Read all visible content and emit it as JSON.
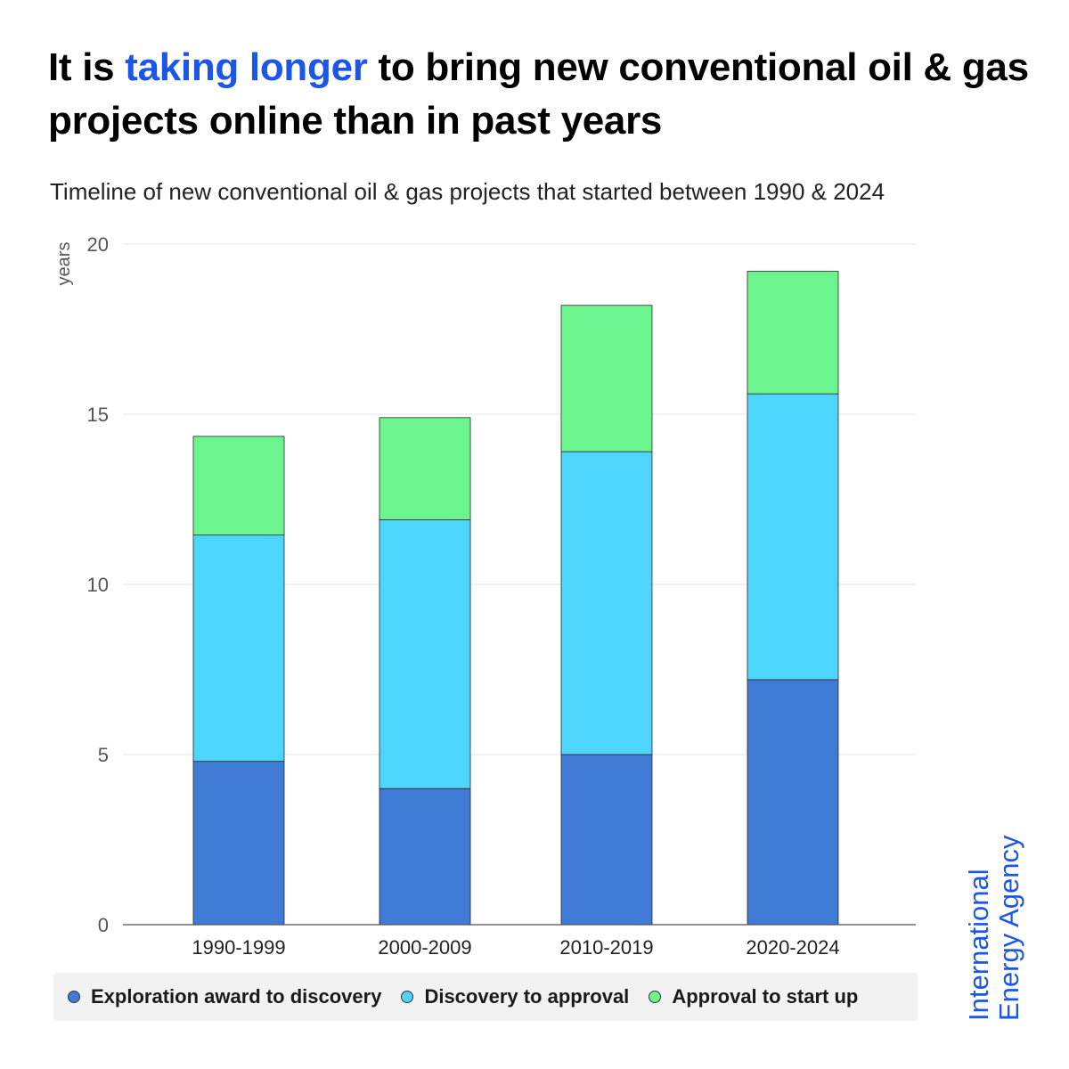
{
  "title": {
    "part1": "It is ",
    "highlight": "taking longer",
    "part2": " to bring new conventional oil & gas projects online than in past years"
  },
  "subtitle": "Timeline of new conventional oil & gas projects that started between 1990 & 2024",
  "brand": {
    "line1": "International",
    "line2": "Energy Agency",
    "color": "#1c56e8"
  },
  "chart_data": {
    "type": "bar",
    "stacked": true,
    "title": "Timeline of new conventional oil & gas projects that started between 1990 & 2024",
    "ylabel": "years",
    "xlabel": "",
    "ylim": [
      0,
      20
    ],
    "yticks": [
      0,
      5,
      10,
      15,
      20
    ],
    "grid": true,
    "legend_position": "bottom",
    "categories": [
      "1990-1999",
      "2000-2009",
      "2010-2019",
      "2020-2024"
    ],
    "series": [
      {
        "name": "Exploration award to discovery",
        "color": "#3f7bd4",
        "values": [
          4.8,
          4.0,
          5.0,
          7.2
        ]
      },
      {
        "name": "Discovery to approval",
        "color": "#4dd5fb",
        "values": [
          6.65,
          7.9,
          8.9,
          8.4
        ]
      },
      {
        "name": "Approval to start up",
        "color": "#6cf58f",
        "values": [
          2.9,
          3.0,
          4.3,
          3.6
        ]
      }
    ]
  }
}
